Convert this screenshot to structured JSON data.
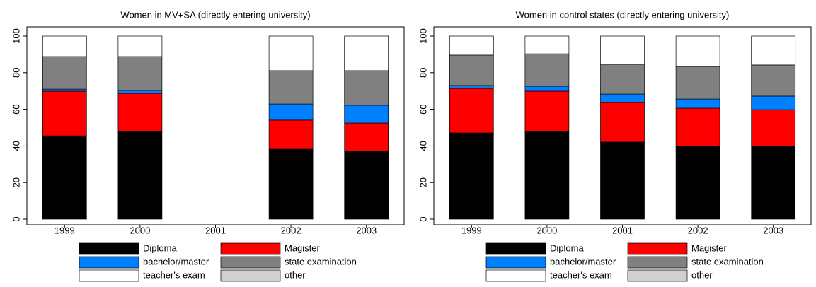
{
  "chart_data": [
    {
      "type": "stacked_bar",
      "title": "Women in MV+SA (directly entering university)",
      "categories": [
        "1999",
        "2000",
        "2001",
        "2002",
        "2003"
      ],
      "ylim": [
        0,
        100
      ],
      "yticks": [
        0,
        20,
        40,
        60,
        80,
        100
      ],
      "series": [
        {
          "name": "Diploma",
          "color": "#000000",
          "values": [
            45.5,
            47.9,
            null,
            38.2,
            37.1
          ]
        },
        {
          "name": "Magister",
          "color": "#ff0000",
          "values": [
            24.4,
            20.8,
            null,
            15.9,
            15.4
          ]
        },
        {
          "name": "bachelor/master",
          "color": "#0080ff",
          "values": [
            1.1,
            1.6,
            null,
            8.8,
            9.7
          ]
        },
        {
          "name": "state examination",
          "color": "#808080",
          "values": [
            17.8,
            18.5,
            null,
            18.2,
            18.9
          ]
        },
        {
          "name": "teacher's exam",
          "color": "#ffffff",
          "values": [
            11.2,
            11.2,
            null,
            18.9,
            18.9
          ]
        },
        {
          "name": "other",
          "color": "#d0d0d0",
          "values": [
            0,
            0,
            null,
            0,
            0
          ]
        }
      ]
    },
    {
      "type": "stacked_bar",
      "title": "Women in control states (directly entering university)",
      "categories": [
        "1999",
        "2000",
        "2001",
        "2002",
        "2003"
      ],
      "ylim": [
        0,
        100
      ],
      "yticks": [
        0,
        20,
        40,
        60,
        80,
        100
      ],
      "series": [
        {
          "name": "Diploma",
          "color": "#000000",
          "values": [
            47.1,
            47.9,
            42.1,
            39.8,
            39.8
          ]
        },
        {
          "name": "Magister",
          "color": "#ff0000",
          "values": [
            24.3,
            22.0,
            21.6,
            20.8,
            20.0
          ]
        },
        {
          "name": "bachelor/master",
          "color": "#0080ff",
          "values": [
            1.6,
            2.7,
            4.6,
            5.0,
            7.4
          ]
        },
        {
          "name": "state examination",
          "color": "#808080",
          "values": [
            16.6,
            17.7,
            16.3,
            17.8,
            17.0
          ]
        },
        {
          "name": "teacher's exam",
          "color": "#ffffff",
          "values": [
            10.4,
            9.7,
            15.4,
            16.6,
            15.8
          ]
        },
        {
          "name": "other",
          "color": "#d0d0d0",
          "values": [
            0,
            0,
            0,
            0,
            0
          ]
        }
      ]
    }
  ]
}
